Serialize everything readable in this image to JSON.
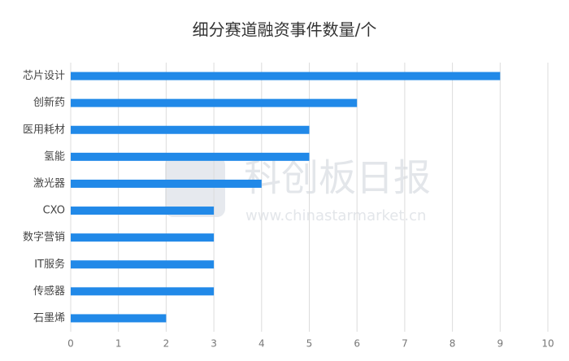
{
  "chart_data": {
    "type": "bar",
    "orientation": "horizontal",
    "title": "细分赛道融资事件数量/个",
    "categories": [
      "芯片设计",
      "创新药",
      "医用耗材",
      "氢能",
      "激光器",
      "CXO",
      "数字营销",
      "IT服务",
      "传感器",
      "石墨烯"
    ],
    "values": [
      9,
      6,
      5,
      5,
      4,
      3,
      3,
      3,
      3,
      2
    ],
    "color": "#2189e8",
    "xlim": [
      0,
      10
    ],
    "xticks": [
      0,
      1,
      2,
      3,
      4,
      5,
      6,
      7,
      8,
      9,
      10
    ],
    "grid": true,
    "watermark": {
      "title": "科创板日报",
      "url": "www.chinastarmarket.cn"
    }
  }
}
